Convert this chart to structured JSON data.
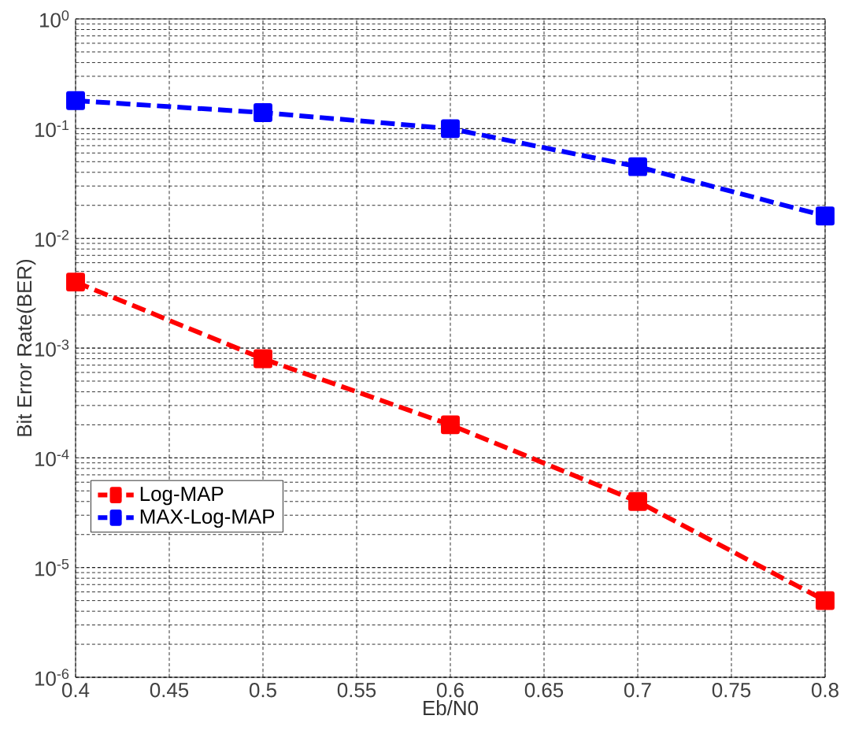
{
  "chart_data": {
    "type": "line",
    "xlabel": "Eb/N0",
    "ylabel": "Bit Error Rate(BER)",
    "x": [
      0.4,
      0.5,
      0.6,
      0.7,
      0.8
    ],
    "series": [
      {
        "name": "Log-MAP",
        "color": "#ff0000",
        "values": [
          0.004,
          0.0008,
          0.0002,
          4e-05,
          5e-06
        ]
      },
      {
        "name": "MAX-Log-MAP",
        "color": "#0000ff",
        "values": [
          0.18,
          0.14,
          0.1,
          0.045,
          0.016
        ]
      }
    ],
    "xlim": [
      0.4,
      0.8
    ],
    "xticks": [
      0.4,
      0.45,
      0.5,
      0.55,
      0.6,
      0.65,
      0.7,
      0.75,
      0.8
    ],
    "ylim": [
      1e-06,
      1
    ],
    "yticks": [
      {
        "value": 1e-06,
        "label": "10$^{-6}$"
      },
      {
        "value": 1e-05,
        "label": "10$^{-5}$"
      },
      {
        "value": 0.0001,
        "label": "10$^{-4}$"
      },
      {
        "value": 0.001,
        "label": "10$^{-3}$"
      },
      {
        "value": 0.01,
        "label": "10$^{-2}$"
      },
      {
        "value": 0.1,
        "label": "10$^{-1}$"
      },
      {
        "value": 1,
        "label": "10$^{0}$"
      }
    ],
    "log": "y",
    "grid": true,
    "legend": "bottom left",
    "marker": "square",
    "line_style": "dashed"
  }
}
